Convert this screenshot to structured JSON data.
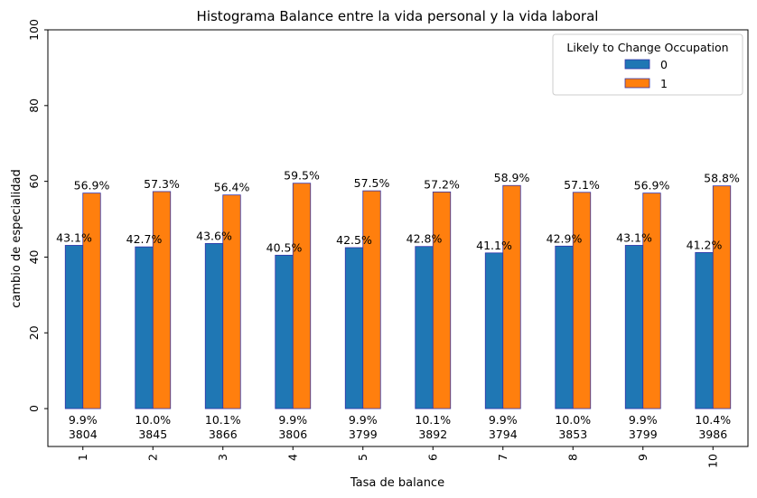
{
  "chart_data": {
    "type": "bar",
    "title": "Histograma Balance entre la vida personal y la vida laboral",
    "xlabel": "Tasa de balance",
    "ylabel": "cambio de especialidad",
    "ylim": [
      -10,
      100
    ],
    "yticks": [
      0,
      20,
      40,
      60,
      80,
      100
    ],
    "categories": [
      "1",
      "2",
      "3",
      "4",
      "5",
      "6",
      "7",
      "8",
      "9",
      "10"
    ],
    "legend": {
      "title": "Likely to Change Occupation",
      "position": "top-right"
    },
    "series": [
      {
        "name": "0",
        "color": "#1f77b4",
        "values": [
          43.1,
          42.7,
          43.6,
          40.5,
          42.5,
          42.8,
          41.1,
          42.9,
          43.1,
          41.2
        ],
        "labels": [
          "43.1%",
          "42.7%",
          "43.6%",
          "40.5%",
          "42.5%",
          "42.8%",
          "41.1%",
          "42.9%",
          "43.1%",
          "41.2%"
        ]
      },
      {
        "name": "1",
        "color": "#ff7f0e",
        "values": [
          56.9,
          57.3,
          56.4,
          59.5,
          57.5,
          57.2,
          58.9,
          57.1,
          56.9,
          58.8
        ],
        "labels": [
          "56.9%",
          "57.3%",
          "56.4%",
          "59.5%",
          "57.5%",
          "57.2%",
          "58.9%",
          "57.1%",
          "56.9%",
          "58.8%"
        ]
      }
    ],
    "annotations": [
      {
        "share": "9.9%",
        "count": "3804"
      },
      {
        "share": "10.0%",
        "count": "3845"
      },
      {
        "share": "10.1%",
        "count": "3866"
      },
      {
        "share": "9.9%",
        "count": "3806"
      },
      {
        "share": "9.9%",
        "count": "3799"
      },
      {
        "share": "10.1%",
        "count": "3892"
      },
      {
        "share": "9.9%",
        "count": "3794"
      },
      {
        "share": "10.0%",
        "count": "3853"
      },
      {
        "share": "9.9%",
        "count": "3799"
      },
      {
        "share": "10.4%",
        "count": "3986"
      }
    ],
    "bar_edge_color": "#3333aa",
    "grid": false
  }
}
